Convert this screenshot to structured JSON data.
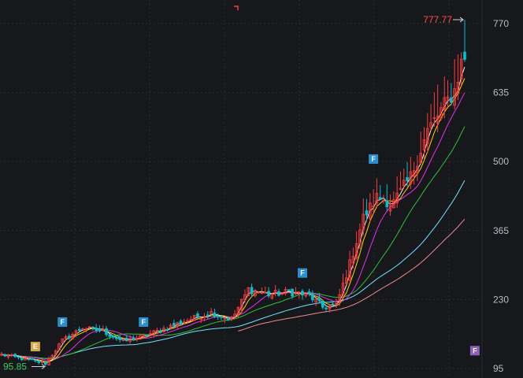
{
  "chart_data": {
    "type": "candlestick",
    "title": "",
    "xlabel": "",
    "ylabel": "",
    "y_axis_position": "right",
    "ylim": [
      95,
      790
    ],
    "yticks": [
      770,
      635,
      500,
      365,
      230,
      95
    ],
    "grid": true,
    "colors": {
      "background": "#17181c",
      "grid": "#2a2c32",
      "up": "#ff3b3b",
      "down": "#00c2d1",
      "ma_white": "#f2f2f2",
      "ma_yellow": "#ffd400",
      "ma_magenta": "#e62fe6",
      "ma_green": "#2fbf3a",
      "ma_cyan": "#6fe3ff",
      "ma_pink": "#f08a8a",
      "high_label": "#ff4b4b",
      "low_label": "#38c95a",
      "marker_blue": "#2a8fd0",
      "marker_gold": "#d6a94a",
      "marker_purple": "#8e5fb8"
    },
    "annotations": {
      "high_label": "777.77",
      "high_value": 777.77,
      "low_label": "95.85",
      "low_value": 95.85
    },
    "markers": [
      {
        "label": "E",
        "index": 10,
        "value": 138,
        "color": "gold"
      },
      {
        "label": "F",
        "index": 18,
        "value": 186,
        "color": "blue"
      },
      {
        "label": "F",
        "index": 42,
        "value": 186,
        "color": "blue"
      },
      {
        "label": "F",
        "index": 89,
        "value": 282,
        "color": "blue"
      },
      {
        "label": "F",
        "index": 110,
        "value": 505,
        "color": "blue"
      },
      {
        "label": "F",
        "index": 140,
        "value": 130,
        "color": "purple"
      }
    ],
    "anchors": [
      {
        "i": 0,
        "v": 122
      },
      {
        "i": 8,
        "v": 112
      },
      {
        "i": 13,
        "v": 105
      },
      {
        "i": 18,
        "v": 150
      },
      {
        "i": 24,
        "v": 175
      },
      {
        "i": 30,
        "v": 168
      },
      {
        "i": 36,
        "v": 148
      },
      {
        "i": 42,
        "v": 158
      },
      {
        "i": 50,
        "v": 178
      },
      {
        "i": 56,
        "v": 192
      },
      {
        "i": 62,
        "v": 205
      },
      {
        "i": 68,
        "v": 190
      },
      {
        "i": 73,
        "v": 250
      },
      {
        "i": 79,
        "v": 240
      },
      {
        "i": 85,
        "v": 245
      },
      {
        "i": 91,
        "v": 238
      },
      {
        "i": 95,
        "v": 215
      },
      {
        "i": 99,
        "v": 218
      },
      {
        "i": 103,
        "v": 300
      },
      {
        "i": 107,
        "v": 390
      },
      {
        "i": 111,
        "v": 430
      },
      {
        "i": 116,
        "v": 420
      },
      {
        "i": 121,
        "v": 470
      },
      {
        "i": 126,
        "v": 560
      },
      {
        "i": 131,
        "v": 610
      },
      {
        "i": 134,
        "v": 640
      },
      {
        "i": 137,
        "v": 720
      }
    ],
    "count": 138
  }
}
